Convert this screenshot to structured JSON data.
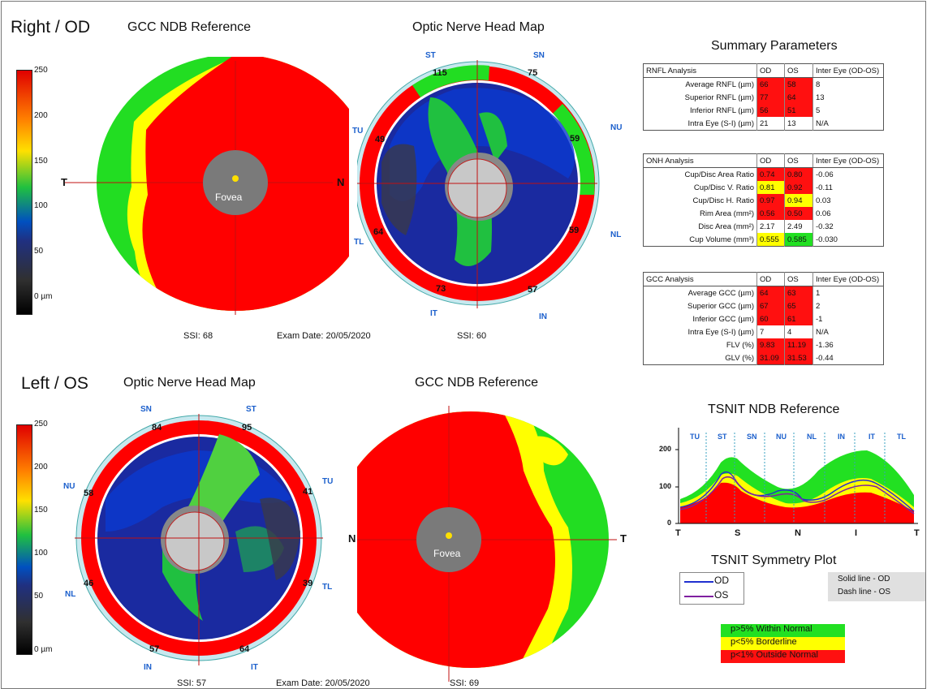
{
  "od": {
    "eye_label": "Right / OD",
    "gcc_title": "GCC NDB Reference",
    "onh_title": "Optic Nerve Head Map",
    "gcc_ssi": "SSI: 68",
    "exam_date": "Exam Date: 20/05/2020",
    "onh_ssi": "SSI: 60",
    "gcc_axis_left": "T",
    "gcc_axis_right": "N",
    "fovea_label": "Fovea",
    "sector_labels": [
      "ST",
      "SN",
      "NU",
      "NL",
      "IN",
      "IT",
      "TL",
      "TU"
    ],
    "sector_values": [
      "115",
      "75",
      "59",
      "59",
      "57",
      "73",
      "64",
      "49"
    ]
  },
  "os": {
    "eye_label": "Left / OS",
    "onh_title": "Optic Nerve Head Map",
    "gcc_title": "GCC NDB Reference",
    "onh_ssi": "SSI: 57",
    "exam_date": "Exam Date: 20/05/2020",
    "gcc_ssi": "SSI: 69",
    "gcc_axis_left": "N",
    "gcc_axis_right": "T",
    "fovea_label": "Fovea",
    "sector_labels": [
      "SN",
      "ST",
      "TU",
      "TL",
      "IT",
      "IN",
      "NL",
      "NU"
    ],
    "sector_values": [
      "84",
      "95",
      "41",
      "39",
      "64",
      "57",
      "46",
      "58"
    ]
  },
  "colorbar": {
    "ticks": [
      "250",
      "200",
      "150",
      "100",
      "50",
      "0 µm"
    ]
  },
  "summary": {
    "title": "Summary Parameters",
    "rnfl": {
      "headers": [
        "RNFL Analysis",
        "OD",
        "OS",
        "Inter Eye (OD-OS)"
      ],
      "rows": [
        [
          "Average RNFL (µm)",
          "66",
          "58",
          "8"
        ],
        [
          "Superior RNFL (µm)",
          "77",
          "64",
          "13"
        ],
        [
          "Inferior RNFL (µm)",
          "56",
          "51",
          "5"
        ],
        [
          "Intra Eye (S-I) (µm)",
          "21",
          "13",
          "N/A"
        ]
      ]
    },
    "onh": {
      "headers": [
        "ONH Analysis",
        "OD",
        "OS",
        "Inter Eye (OD-OS)"
      ],
      "rows": [
        [
          "Cup/Disc Area Ratio",
          "0.74",
          "0.80",
          "-0.06"
        ],
        [
          "Cup/Disc V. Ratio",
          "0.81",
          "0.92",
          "-0.11"
        ],
        [
          "Cup/Disc H. Ratio",
          "0.97",
          "0.94",
          "0.03"
        ],
        [
          "Rim Area (mm²)",
          "0.56",
          "0.50",
          "0.06"
        ],
        [
          "Disc Area (mm²)",
          "2.17",
          "2.49",
          "-0.32"
        ],
        [
          "Cup Volume (mm³)",
          "0.555",
          "0.585",
          "-0.030"
        ]
      ]
    },
    "gcc": {
      "headers": [
        "GCC Analysis",
        "OD",
        "OS",
        "Inter Eye (OD-OS)"
      ],
      "rows": [
        [
          "Average GCC (µm)",
          "64",
          "63",
          "1"
        ],
        [
          "Superior GCC (µm)",
          "67",
          "65",
          "2"
        ],
        [
          "Inferior GCC (µm)",
          "60",
          "61",
          "-1"
        ],
        [
          "Intra Eye (S-I) (µm)",
          "7",
          "4",
          "N/A"
        ],
        [
          "FLV (%)",
          "9.83",
          "11.19",
          "-1.36"
        ],
        [
          "GLV (%)",
          "31.09",
          "31.53",
          "-0.44"
        ]
      ]
    }
  },
  "tsnit": {
    "title": "TSNIT NDB Reference",
    "sectors": [
      "TU",
      "ST",
      "SN",
      "NU",
      "NL",
      "IN",
      "IT",
      "TL"
    ],
    "x_ticks": [
      "T",
      "S",
      "N",
      "I",
      "T"
    ],
    "y_ticks": [
      "200",
      "100",
      "0"
    ]
  },
  "symmetry": {
    "title": "TSNIT Symmetry Plot",
    "od_label": "OD",
    "os_label": "OS",
    "note1": "Solid line - OD",
    "note2": "Dash line - OS",
    "od_color": "#2030d0",
    "os_color": "#8020a0"
  },
  "legend": {
    "normal": "p>5% Within Normal",
    "borderline": "p<5% Borderline",
    "outside": "p<1% Outside Normal",
    "normal_color": "#22e022",
    "borderline_color": "#ffff00",
    "outside_color": "#ff1010"
  },
  "colors": {
    "red": "#ff0000",
    "green": "#22e022",
    "yellow": "#ffff00"
  }
}
